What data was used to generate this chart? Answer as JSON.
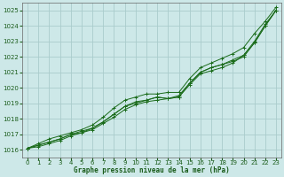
{
  "bg_color": "#cde8e8",
  "grid_color": "#aacccc",
  "line_color": "#1a6b1a",
  "marker_color": "#1a6b1a",
  "xlabel": "Graphe pression niveau de la mer (hPa)",
  "xlabel_color": "#1a5c1a",
  "ylabel_color": "#1a5c1a",
  "xlim": [
    -0.5,
    23.5
  ],
  "ylim": [
    1015.5,
    1025.5
  ],
  "yticks": [
    1016,
    1017,
    1018,
    1019,
    1020,
    1021,
    1022,
    1023,
    1024,
    1025
  ],
  "xticks": [
    0,
    1,
    2,
    3,
    4,
    5,
    6,
    7,
    8,
    9,
    10,
    11,
    12,
    13,
    14,
    15,
    16,
    17,
    18,
    19,
    20,
    21,
    22,
    23
  ],
  "series": [
    [
      1016.1,
      1016.2,
      1016.4,
      1016.6,
      1016.9,
      1017.1,
      1017.3,
      1017.7,
      1018.1,
      1018.6,
      1018.9,
      1019.1,
      1019.2,
      1019.3,
      1019.4,
      1020.2,
      1020.9,
      1021.1,
      1021.3,
      1021.6,
      1022.1,
      1022.9,
      1024.0,
      1025.0
    ],
    [
      1016.1,
      1016.3,
      1016.5,
      1016.7,
      1017.0,
      1017.2,
      1017.4,
      1017.8,
      1018.3,
      1018.8,
      1019.1,
      1019.2,
      1019.4,
      1019.3,
      1019.5,
      1020.3,
      1021.0,
      1021.3,
      1021.5,
      1021.8,
      1022.1,
      1023.0,
      1024.1,
      1025.0
    ],
    [
      1016.1,
      1016.3,
      1016.5,
      1016.7,
      1017.0,
      1017.1,
      1017.4,
      1017.8,
      1018.3,
      1018.8,
      1019.0,
      1019.2,
      1019.4,
      1019.3,
      1019.4,
      1020.3,
      1021.0,
      1021.3,
      1021.5,
      1021.7,
      1022.0,
      1022.9,
      1024.0,
      1025.0
    ],
    [
      1016.1,
      1016.4,
      1016.7,
      1016.9,
      1017.1,
      1017.3,
      1017.6,
      1018.1,
      1018.7,
      1019.2,
      1019.4,
      1019.6,
      1019.6,
      1019.7,
      1019.7,
      1020.6,
      1021.3,
      1021.6,
      1021.9,
      1022.2,
      1022.6,
      1023.5,
      1024.3,
      1025.2
    ]
  ],
  "figsize": [
    3.2,
    2.0
  ],
  "dpi": 100
}
